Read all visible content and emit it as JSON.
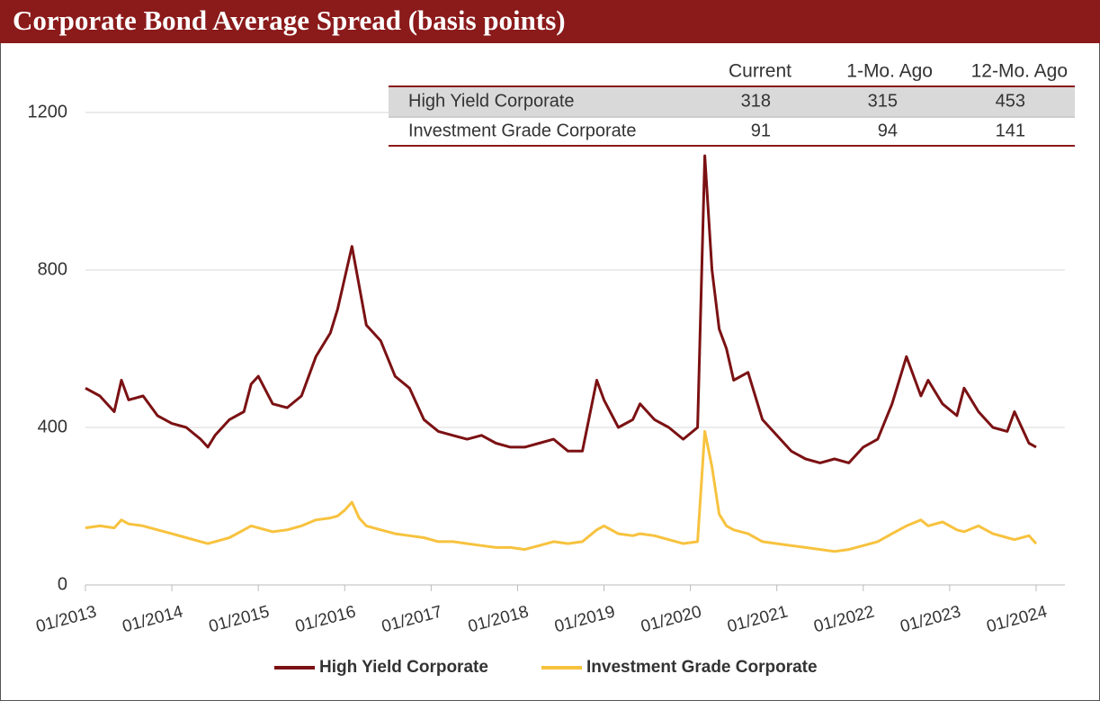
{
  "chart_data": {
    "type": "line",
    "title": "Corporate Bond Average Spread (basis points)",
    "x": [
      "01/2013",
      "03/2013",
      "05/2013",
      "06/2013",
      "07/2013",
      "09/2013",
      "11/2013",
      "01/2014",
      "03/2014",
      "05/2014",
      "06/2014",
      "07/2014",
      "09/2014",
      "11/2014",
      "12/2014",
      "01/2015",
      "03/2015",
      "05/2015",
      "07/2015",
      "09/2015",
      "11/2015",
      "12/2015",
      "01/2016",
      "02/2016",
      "03/2016",
      "04/2016",
      "06/2016",
      "08/2016",
      "10/2016",
      "12/2016",
      "02/2017",
      "04/2017",
      "06/2017",
      "08/2017",
      "10/2017",
      "12/2017",
      "02/2018",
      "04/2018",
      "06/2018",
      "08/2018",
      "10/2018",
      "12/2018",
      "01/2019",
      "03/2019",
      "05/2019",
      "06/2019",
      "08/2019",
      "10/2019",
      "12/2019",
      "02/2020",
      "03/2020",
      "04/2020",
      "05/2020",
      "06/2020",
      "07/2020",
      "09/2020",
      "11/2020",
      "01/2021",
      "03/2021",
      "05/2021",
      "07/2021",
      "09/2021",
      "11/2021",
      "01/2022",
      "03/2022",
      "05/2022",
      "07/2022",
      "09/2022",
      "10/2022",
      "12/2022",
      "02/2023",
      "03/2023",
      "05/2023",
      "07/2023",
      "09/2023",
      "10/2023",
      "12/2023",
      "01/2024"
    ],
    "series": [
      {
        "name": "High Yield Corporate",
        "color": "#7b1113",
        "values": [
          500,
          480,
          440,
          520,
          470,
          480,
          430,
          410,
          400,
          370,
          350,
          380,
          420,
          440,
          510,
          530,
          460,
          450,
          480,
          580,
          640,
          700,
          780,
          860,
          760,
          660,
          620,
          530,
          500,
          420,
          390,
          380,
          370,
          380,
          360,
          350,
          350,
          360,
          370,
          340,
          340,
          520,
          470,
          400,
          420,
          460,
          420,
          400,
          370,
          400,
          1090,
          800,
          650,
          600,
          520,
          540,
          420,
          380,
          340,
          320,
          310,
          320,
          310,
          350,
          370,
          460,
          580,
          480,
          520,
          460,
          430,
          500,
          440,
          400,
          390,
          440,
          360,
          350
        ]
      },
      {
        "name": "Investment Grade Corporate",
        "color": "#f7c23e",
        "values": [
          145,
          150,
          145,
          165,
          155,
          150,
          140,
          130,
          120,
          110,
          105,
          110,
          120,
          140,
          150,
          145,
          135,
          140,
          150,
          165,
          170,
          175,
          190,
          210,
          170,
          150,
          140,
          130,
          125,
          120,
          110,
          110,
          105,
          100,
          95,
          95,
          90,
          100,
          110,
          105,
          110,
          140,
          150,
          130,
          125,
          130,
          125,
          115,
          105,
          110,
          390,
          300,
          180,
          150,
          140,
          130,
          110,
          105,
          100,
          95,
          90,
          85,
          90,
          100,
          110,
          130,
          150,
          165,
          150,
          160,
          140,
          135,
          150,
          130,
          120,
          115,
          125,
          105
        ]
      }
    ],
    "xlim": [
      "01/2013",
      "05/2024"
    ],
    "xticks": [
      "01/2013",
      "01/2014",
      "01/2015",
      "01/2016",
      "01/2017",
      "01/2018",
      "01/2019",
      "01/2020",
      "01/2021",
      "01/2022",
      "01/2023",
      "01/2024"
    ],
    "ylim": [
      0,
      1200
    ],
    "yticks": [
      0,
      400,
      800,
      1200
    ],
    "grid": true
  },
  "table": {
    "header": [
      "Current",
      "1-Mo. Ago",
      "12-Mo. Ago"
    ],
    "rows": [
      [
        "High Yield Corporate",
        318,
        315,
        453
      ],
      [
        "Investment Grade Corporate",
        91,
        94,
        141
      ]
    ]
  }
}
